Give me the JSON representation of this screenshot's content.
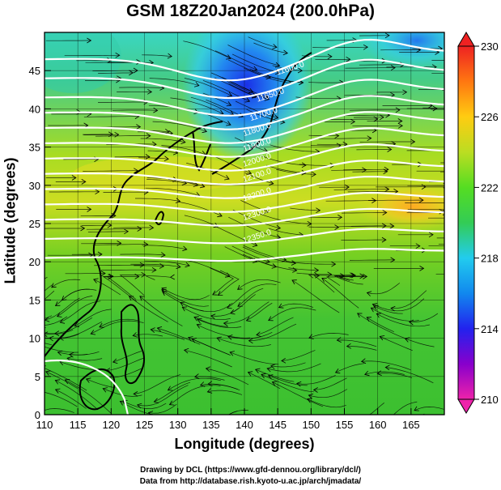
{
  "title": "GSM 18Z20Jan2024 (200.0hPa)",
  "xlabel": "Longitude (degrees)",
  "ylabel": "Latitude  (degrees)",
  "credits": [
    "Drawing by DCL (https://www.gfd-dennou.org/library/dcl/)",
    "Data from http://database.rish.kyoto-u.ac.jp/arch/jmadata/"
  ],
  "chart_data": {
    "type": "map",
    "x_ticks": [
      110,
      115,
      120,
      125,
      130,
      135,
      140,
      145,
      150,
      155,
      160,
      165
    ],
    "y_ticks": [
      0,
      5,
      10,
      15,
      20,
      25,
      30,
      35,
      40,
      45
    ],
    "xlim": [
      110,
      170
    ],
    "ylim": [
      0,
      50
    ],
    "colorbar": {
      "ticks": [
        210,
        214,
        218,
        222,
        226,
        230
      ],
      "range": [
        210,
        230
      ],
      "colors": [
        "#ee22aa",
        "#8800cc",
        "#2222ee",
        "#1188ee",
        "#22ccee",
        "#33dd88",
        "#33cc33",
        "#66dd22",
        "#aadd22",
        "#eedd22",
        "#ffaa11",
        "#ff6600",
        "#ee2222"
      ]
    },
    "contour_labels": [
      {
        "lon": 147,
        "lat": 45,
        "text": "11600.0"
      },
      {
        "lon": 144,
        "lat": 41.5,
        "text": "11650.0"
      },
      {
        "lon": 143,
        "lat": 39,
        "text": "11700.0"
      },
      {
        "lon": 142,
        "lat": 37,
        "text": "11800.0"
      },
      {
        "lon": 142,
        "lat": 35,
        "text": "11900.0"
      },
      {
        "lon": 142,
        "lat": 33,
        "text": "12000.0"
      },
      {
        "lon": 142,
        "lat": 31,
        "text": "12100.0"
      },
      {
        "lon": 142,
        "lat": 28.5,
        "text": "12200.0"
      },
      {
        "lon": 142,
        "lat": 26,
        "text": "12300.0"
      },
      {
        "lon": 142,
        "lat": 23,
        "text": "12350.0"
      }
    ]
  }
}
